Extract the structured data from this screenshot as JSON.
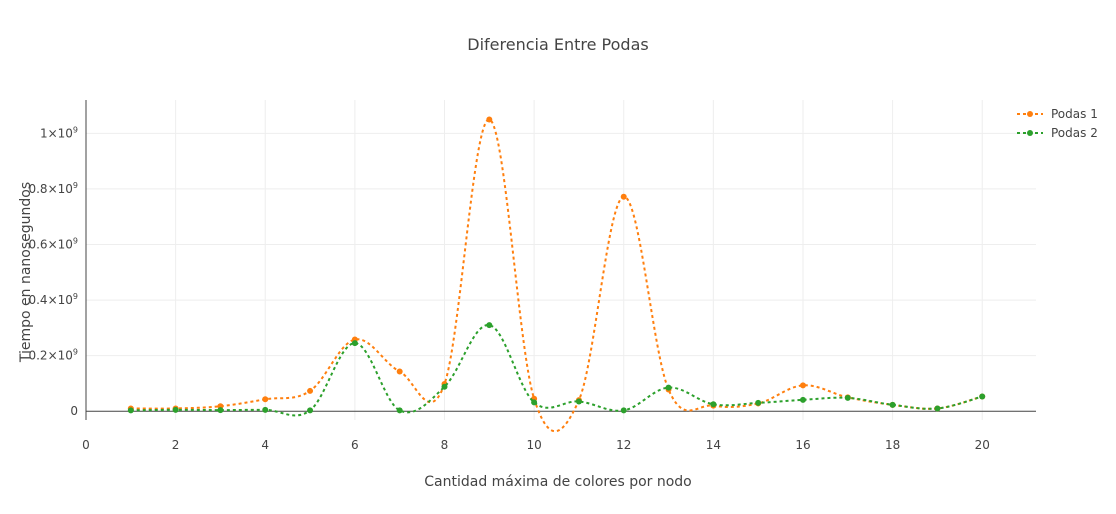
{
  "chart_data": {
    "type": "line",
    "title": "Diferencia Entre Podas",
    "xlabel": "Cantidad máxima de colores por nodo",
    "ylabel": "Tiempo en nanosegundos",
    "xlim": [
      0,
      21.2
    ],
    "ylim": [
      -10000000,
      1120000000
    ],
    "x_ticks": [
      0,
      2,
      4,
      6,
      8,
      10,
      12,
      14,
      16,
      18,
      20
    ],
    "y_ticks": [
      {
        "value": 0,
        "base": "0",
        "exp": ""
      },
      {
        "value": 200000000,
        "base": "0.2×10",
        "exp": "9"
      },
      {
        "value": 400000000,
        "base": "0.4×10",
        "exp": "9"
      },
      {
        "value": 600000000,
        "base": "0.6×10",
        "exp": "9"
      },
      {
        "value": 800000000,
        "base": "0.8×10",
        "exp": "9"
      },
      {
        "value": 1000000000,
        "base": "1×10",
        "exp": "9"
      }
    ],
    "grid": true,
    "legend_position": "top-right",
    "x": [
      1,
      2,
      3,
      4,
      5,
      6,
      7,
      8,
      9,
      10,
      11,
      12,
      13,
      14,
      15,
      16,
      17,
      18,
      19,
      20
    ],
    "series": [
      {
        "name": "Podas 1",
        "color": "#ff7f0e",
        "values": [
          10000000,
          10000000,
          18000000,
          43000000,
          73000000,
          258000000,
          143000000,
          98000000,
          1050000000,
          45000000,
          40000000,
          772000000,
          78000000,
          20000000,
          28000000,
          93000000,
          50000000,
          23000000,
          10000000,
          53000000
        ]
      },
      {
        "name": "Podas 2",
        "color": "#2ca02c",
        "values": [
          3000000,
          5000000,
          4000000,
          5000000,
          3000000,
          245000000,
          3000000,
          88000000,
          310000000,
          32000000,
          35000000,
          3000000,
          85000000,
          25000000,
          30000000,
          41000000,
          48000000,
          23000000,
          10000000,
          53000000
        ]
      }
    ]
  }
}
